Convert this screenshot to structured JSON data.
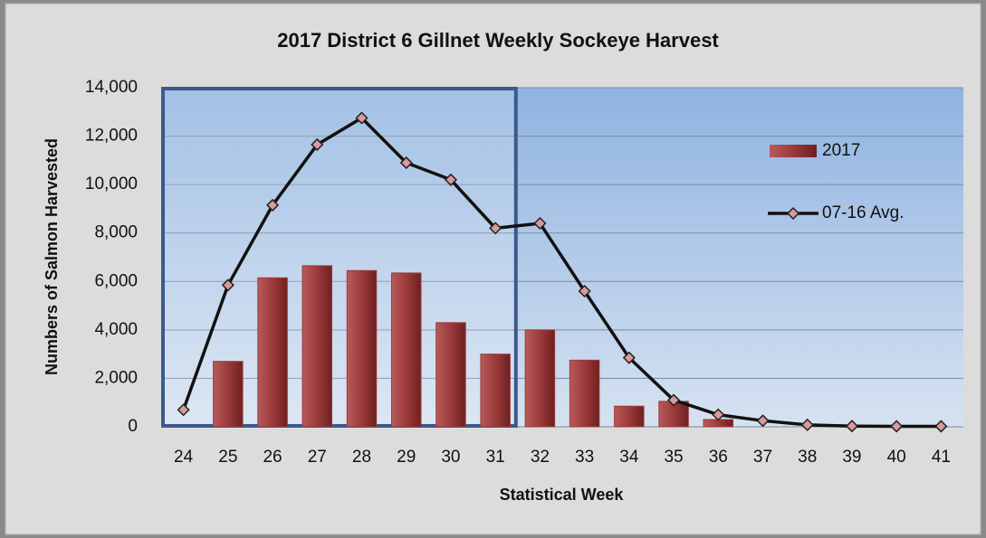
{
  "chart_data": {
    "type": "bar",
    "title": "2017 District 6 Gillnet Weekly Sockeye Harvest",
    "x_label": "Statistical Week",
    "y_label": "Numbers of Salmon Harvested",
    "categories": [
      "24",
      "25",
      "26",
      "27",
      "28",
      "29",
      "30",
      "31",
      "32",
      "33",
      "34",
      "35",
      "36",
      "37",
      "38",
      "39",
      "40",
      "41"
    ],
    "series": [
      {
        "name": "2017",
        "type": "bar",
        "color": "#9b3a3a",
        "values": [
          0,
          2700,
          6150,
          6650,
          6450,
          6350,
          4300,
          3000,
          4000,
          2750,
          850,
          1050,
          300,
          0,
          0,
          0,
          0,
          0
        ]
      },
      {
        "name": "07-16 Avg.",
        "type": "line",
        "color": "#111111",
        "values": [
          700,
          5850,
          9150,
          11650,
          12750,
          10900,
          10200,
          8200,
          8400,
          5600,
          2850,
          1100,
          500,
          250,
          80,
          30,
          20,
          20
        ]
      }
    ],
    "ylim": [
      0,
      14000
    ],
    "yticks": [
      0,
      {
        "value": 2000,
        "label": "2,000"
      },
      {
        "value": 4000,
        "label": "4,000"
      },
      {
        "value": 6000,
        "label": "6,000"
      },
      {
        "value": 8000,
        "label": "8,000"
      },
      {
        "value": 10000,
        "label": "10,000"
      },
      {
        "value": 12000,
        "label": "12,000"
      },
      {
        "value": 14000,
        "label": "14,000"
      }
    ],
    "grid": true
  }
}
